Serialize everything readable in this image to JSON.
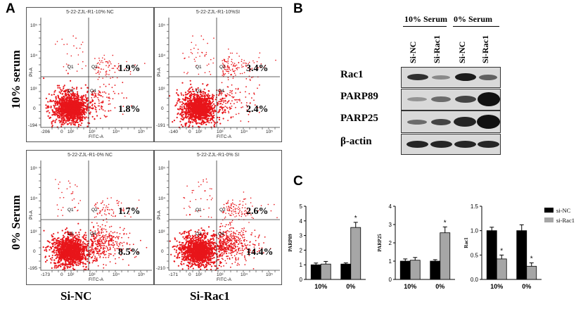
{
  "panels": {
    "a": "A",
    "b": "B",
    "c": "C"
  },
  "rows": [
    "10% serum",
    "0% Serum"
  ],
  "columns": [
    "Si-NC",
    "Si-Rac1"
  ],
  "flow_plots": [
    {
      "title": "5-22-ZJL-R1-10% NC",
      "q1": "Q1",
      "q2": "Q2",
      "q3": "Q3",
      "q4": "Q4",
      "upper_right": "1.9%",
      "lower_right": "1.8%",
      "xmin": "-206",
      "ymin": "-194"
    },
    {
      "title": "5-22-ZJL-R1-10%SI",
      "q1": "Q1",
      "q2": "Q2",
      "q3": "Q3",
      "q4": "Q4",
      "upper_right": "3.4%",
      "lower_right": "2.4%",
      "xmin": "-140",
      "ymin": "-191"
    },
    {
      "title": "5-22-ZJL-R1-0% NC",
      "q1": "Q1",
      "q2": "Q2",
      "q3": "Q3",
      "q4": "Q4",
      "upper_right": "1.7%",
      "lower_right": "8.5%",
      "xmin": "-173",
      "ymin": "-195"
    },
    {
      "title": "5-22-ZJL-R1-0% SI",
      "q1": "Q1",
      "q2": "Q2",
      "q3": "Q3",
      "q4": "Q4",
      "upper_right": "2.6%",
      "lower_right": "14.4%",
      "xmin": "-171",
      "ymin": "-210"
    }
  ],
  "flow_axes": {
    "x_label": "FITC-A",
    "y_label": "PI-A",
    "tick_0": "0",
    "tick_2": "10²",
    "tick_3": "10³",
    "tick_4": "10⁴",
    "tick_5": "10⁵"
  },
  "western": {
    "groups": [
      "10% Serum",
      "0% Serum"
    ],
    "lanes": [
      "Si-NC",
      "Si-Rac1",
      "Si-NC",
      "Si-Rac1"
    ],
    "proteins": [
      "Rac1",
      "PARP89",
      "PARP25",
      "β-actin"
    ]
  },
  "chart_data": [
    {
      "type": "bar",
      "ylabel": "PARP89",
      "categories": [
        "10%",
        "0%"
      ],
      "ylim": [
        0,
        5
      ],
      "yticks": [
        "0",
        "1",
        "2",
        "3",
        "4",
        "5"
      ],
      "series": [
        {
          "name": "si-NC",
          "values": [
            1.0,
            1.05
          ],
          "errors": [
            0.12,
            0.08
          ]
        },
        {
          "name": "si-Rac1",
          "values": [
            1.05,
            3.55
          ],
          "errors": [
            0.18,
            0.35
          ]
        }
      ],
      "annotations": [
        {
          "text": "*",
          "category": "0%",
          "series": "si-Rac1"
        }
      ]
    },
    {
      "type": "bar",
      "ylabel": "PARP25",
      "categories": [
        "10%",
        "0%"
      ],
      "ylim": [
        0,
        4
      ],
      "yticks": [
        "0",
        "1",
        "2",
        "3",
        "4"
      ],
      "series": [
        {
          "name": "si-NC",
          "values": [
            1.0,
            1.0
          ],
          "errors": [
            0.12,
            0.08
          ]
        },
        {
          "name": "si-Rac1",
          "values": [
            1.05,
            2.55
          ],
          "errors": [
            0.15,
            0.32
          ]
        }
      ],
      "annotations": [
        {
          "text": "*",
          "category": "0%",
          "series": "si-Rac1"
        }
      ]
    },
    {
      "type": "bar",
      "ylabel": "Rac1",
      "categories": [
        "10%",
        "0%"
      ],
      "ylim": [
        0,
        1.5
      ],
      "yticks": [
        "0.0",
        "0.5",
        "1.0",
        "1.5"
      ],
      "series": [
        {
          "name": "si-NC",
          "values": [
            1.0,
            1.0
          ],
          "errors": [
            0.07,
            0.12
          ]
        },
        {
          "name": "si-Rac1",
          "values": [
            0.42,
            0.27
          ],
          "errors": [
            0.08,
            0.07
          ]
        }
      ],
      "annotations": [
        {
          "text": "*",
          "category": "10%",
          "series": "si-Rac1"
        },
        {
          "text": "*",
          "category": "0%",
          "series": "si-Rac1"
        }
      ],
      "legend": [
        "si-NC",
        "si-Rac1"
      ]
    }
  ],
  "colors": {
    "dots": "#e8151a",
    "nc_bar": "#000000",
    "rac1_bar": "#a6a6a6"
  }
}
